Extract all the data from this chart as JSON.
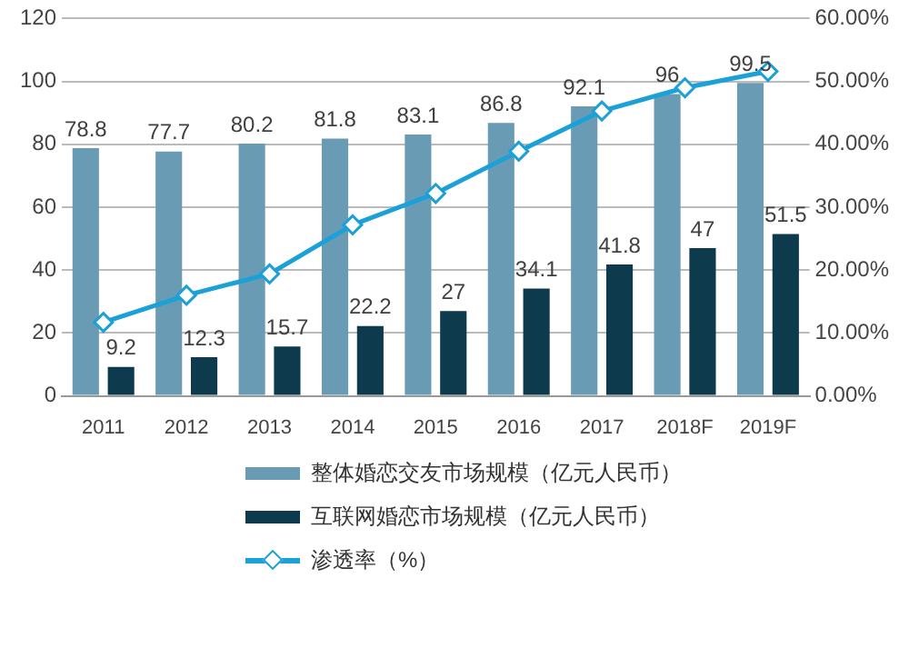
{
  "chart_data": {
    "type": "bar",
    "categories": [
      "2011",
      "2012",
      "2013",
      "2014",
      "2015",
      "2016",
      "2017",
      "2018F",
      "2019F"
    ],
    "series": [
      {
        "name": "整体婚恋交友市场规模（亿元人民币）",
        "color": "#6a9bb5",
        "values": [
          78.8,
          77.7,
          80.2,
          81.8,
          83.1,
          86.8,
          92.1,
          96,
          99.5
        ],
        "value_labels": [
          "78.8",
          "77.7",
          "80.2",
          "81.8",
          "83.1",
          "86.8",
          "92.1",
          "96",
          "99.5"
        ]
      },
      {
        "name": "互联网婚恋市场规模（亿元人民币）",
        "color": "#0d3a4c",
        "values": [
          9.2,
          12.3,
          15.7,
          22.2,
          27,
          34.1,
          41.8,
          47,
          51.5
        ],
        "value_labels": [
          "9.2",
          "12.3",
          "15.7",
          "22.2",
          "27",
          "34.1",
          "41.8",
          "47",
          "51.5"
        ]
      },
      {
        "name": "渗透率（%）",
        "type": "line",
        "axis": "y2",
        "color": "#1ba0d8",
        "marker": "diamond",
        "values": [
          11.7,
          16.0,
          19.4,
          27.2,
          32.2,
          38.9,
          45.3,
          49.0,
          51.6
        ]
      }
    ],
    "ylim": [
      0,
      120
    ],
    "yticks": [
      0,
      20,
      40,
      60,
      80,
      100,
      120
    ],
    "y2lim": [
      0,
      60
    ],
    "y2ticks": [
      {
        "value": 0,
        "label": "0.00%"
      },
      {
        "value": 10,
        "label": "10.00%"
      },
      {
        "value": 20,
        "label": "20.00%"
      },
      {
        "value": 30,
        "label": "30.00%"
      },
      {
        "value": 40,
        "label": "40.00%"
      },
      {
        "value": 50,
        "label": "50.00%"
      },
      {
        "value": 60,
        "label": "60.00%"
      }
    ],
    "grid": "y",
    "legend": "bottom"
  }
}
